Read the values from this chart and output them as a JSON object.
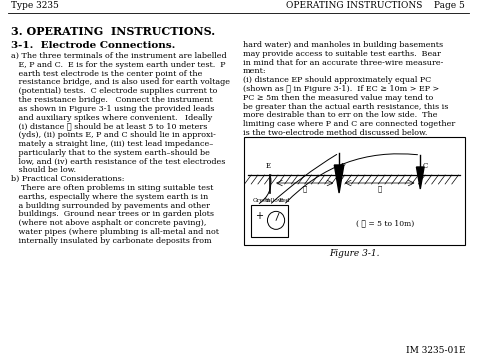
{
  "header_left": "Type 3235",
  "header_right": "OPERATING INSTRUCTIONS    Page 5",
  "section_title": "3. OPERATING  INSTRUCTIONS.",
  "subsection_title": "3-1.  Electrode Connections.",
  "left_col_text": [
    "a) The three terminals of the instrument are labelled",
    "   E, P and C.  E is for the system earth under test.  P",
    "   earth test electrode is the center point of the",
    "   resistance bridge, and is also used for earth voltage",
    "   (potential) tests.  C electrode supplies current to",
    "   the resistance bridge.   Connect the instrument",
    "   as shown in Figure 3-1 using the provided leads",
    "   and auxiliary spikes where convenient.   Ideally",
    "   (i) distance ℓ should be at least 5 to 10 meters",
    "   (yds), (ii) points E, P and C should lie in approxi-",
    "   mately a straight line, (iii) test lead impedance–",
    "   particularly that to the system earth–should be",
    "   low, and (iv) earth resistance of the test electrodes",
    "   should be low.",
    "b) Practical Considerations:",
    "    There are often problems in siting suitable test",
    "   earths, especially where the system earth is in",
    "   a building surrounded by pavements and other",
    "   buildings.  Ground near trees or in garden plots",
    "   (where not above asphalt or concrete paving),",
    "   water pipes (where plumbing is all-metal and not",
    "   internally insulated by carbonate deposits from"
  ],
  "right_col_text": [
    "hard water) and manholes in building basements",
    "may provide access to suitable test earths.  Bear",
    "in mind that for an accurate three-wire measure-",
    "ment:",
    "(i) distance EP should approximately equal PC",
    "(shown as ℓ in Figure 3-1).  If EC ≥ 10m > EP >",
    "PC ≥ 5m then the measured value may tend to",
    "be greater than the actual earth resistance, this is",
    "more desirable than to err on the low side.  The",
    "limiting case where P and C are connected together",
    "is the two-electrode method discussed below."
  ],
  "figure_caption": "Figure 3-1.",
  "figure_label": "( ℓ = 5 to 10m)",
  "footer": "IM 3235-01E",
  "bg_color": "#ffffff",
  "text_color": "#000000"
}
